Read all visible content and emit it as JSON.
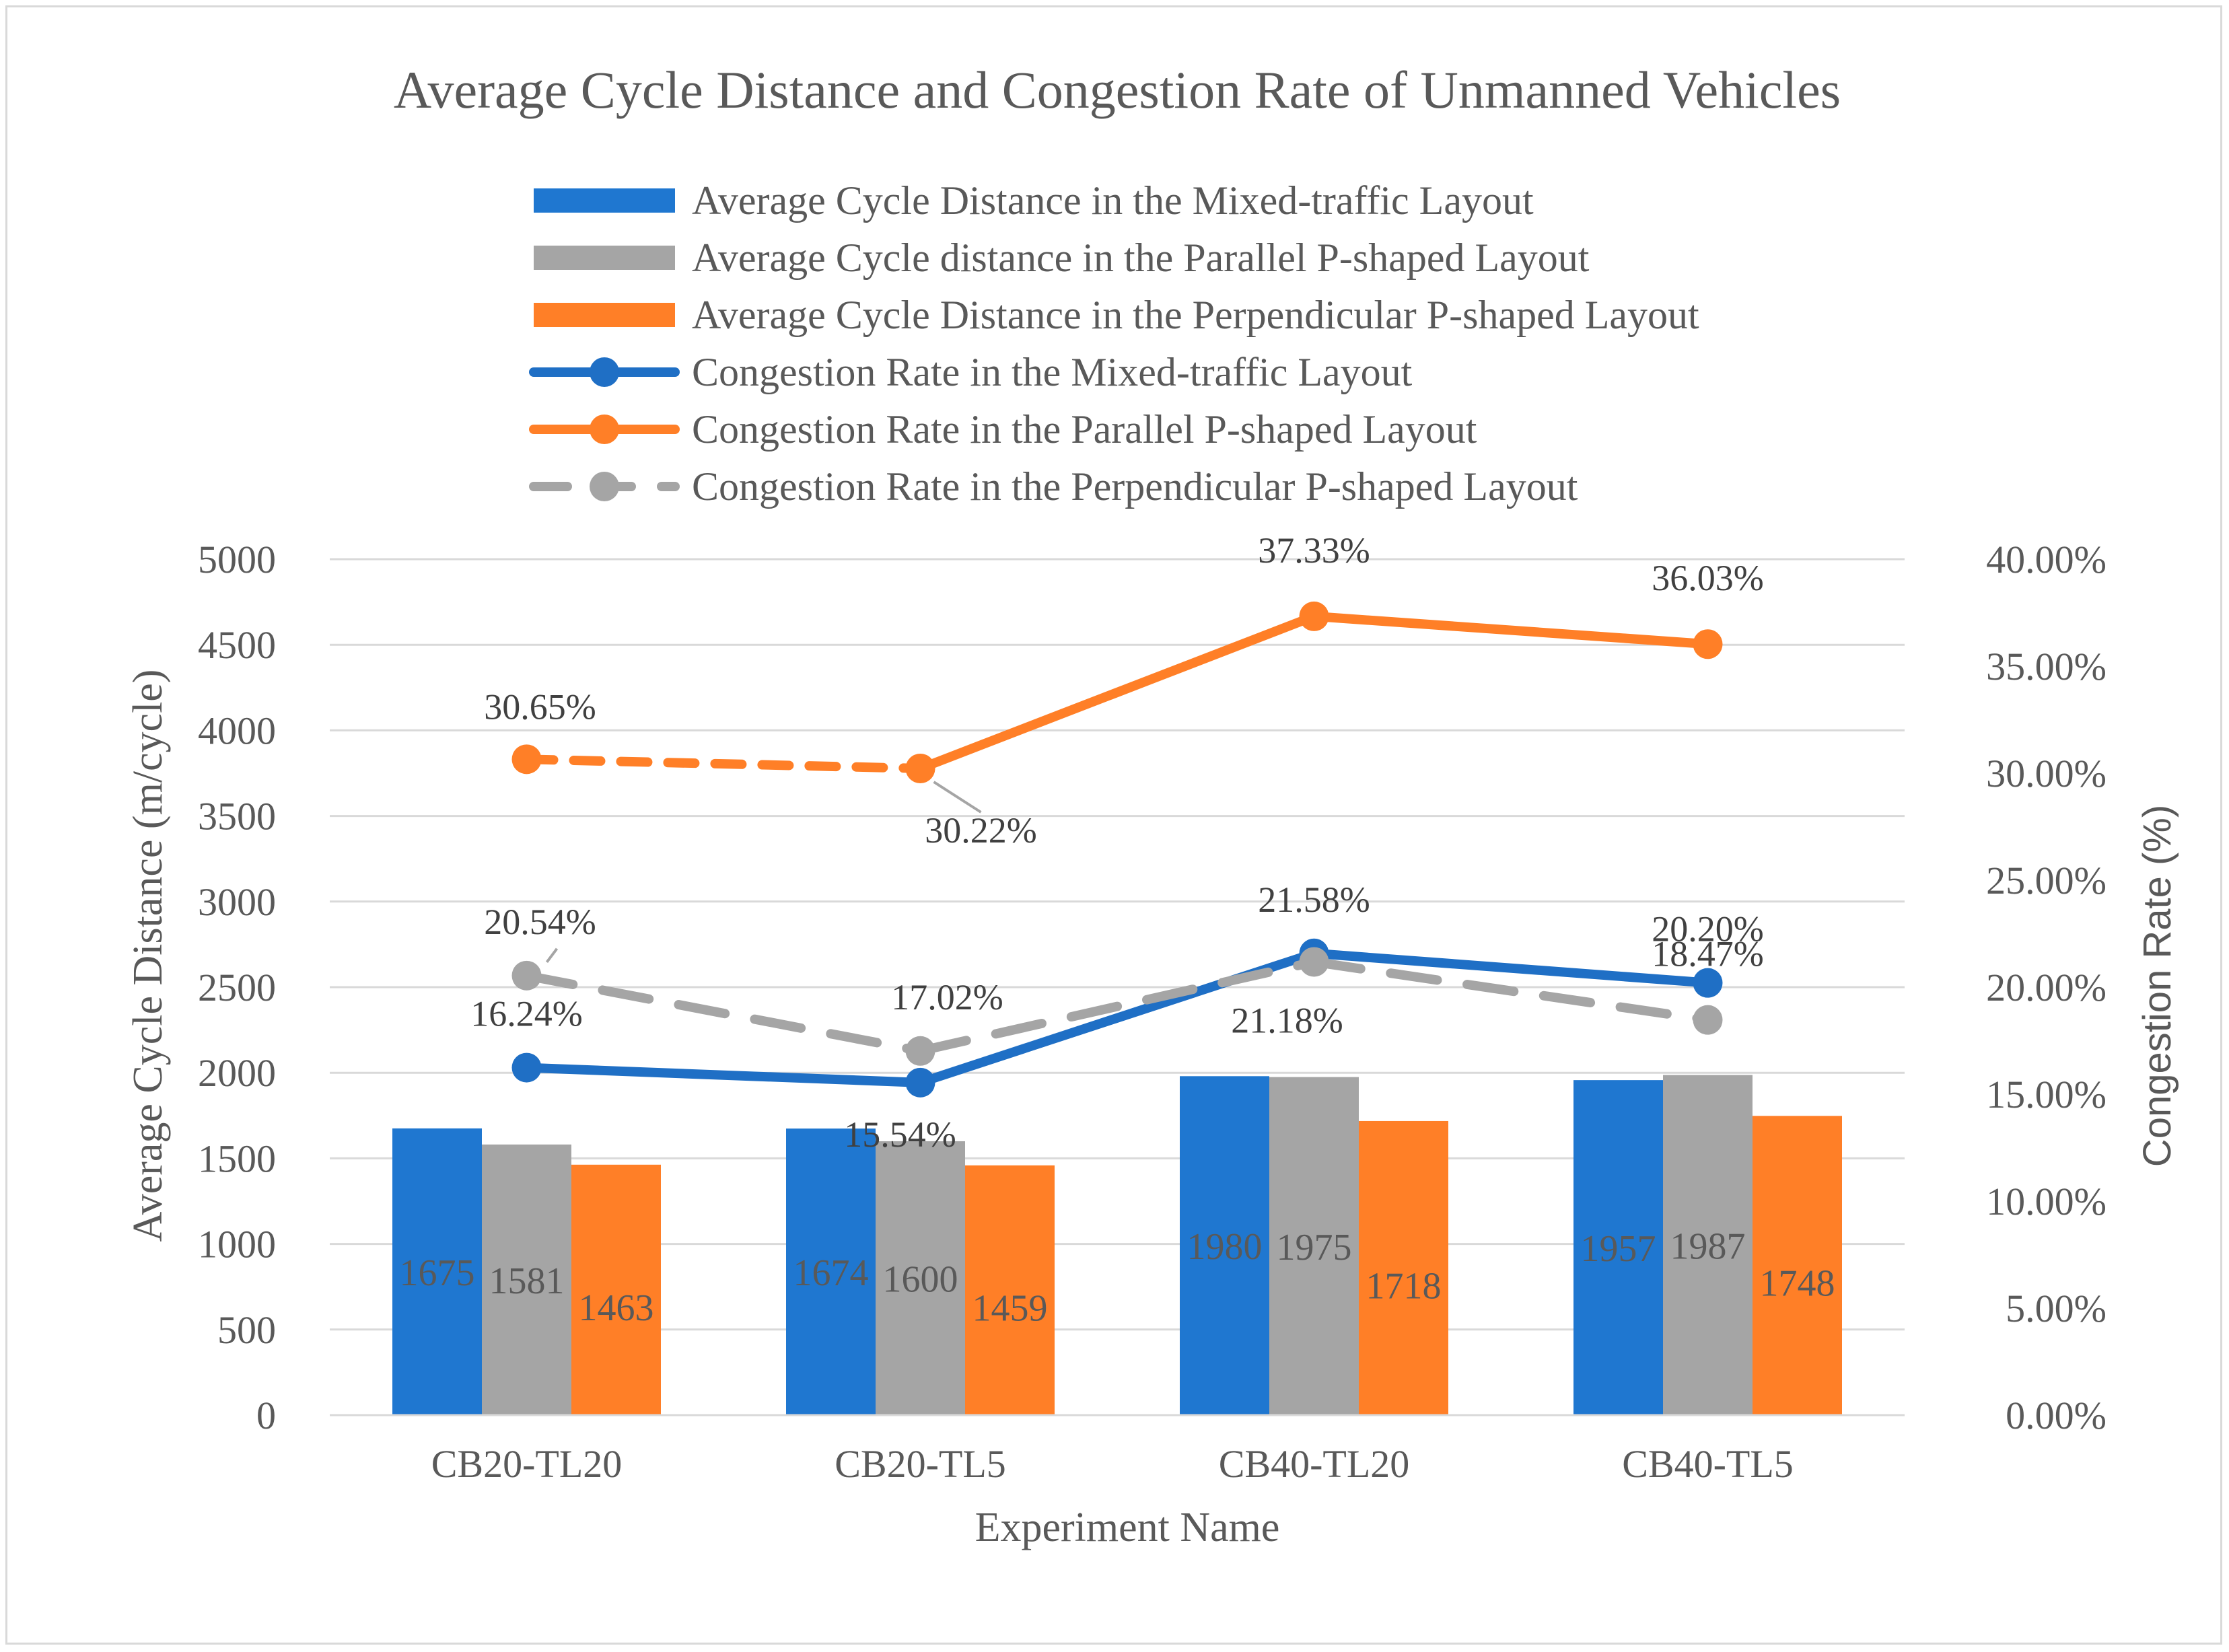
{
  "chart_data": {
    "type": "bar+line",
    "title": "Average Cycle Distance and Congestion Rate of Unmanned Vehicles",
    "xlabel": "Experiment Name",
    "ylabel": "Average Cycle Distance (m/cycle)",
    "y2label": "Congestion Rate (%)",
    "ylim": [
      0,
      5000
    ],
    "y2lim": [
      0,
      40
    ],
    "yticks": [
      "0",
      "500",
      "1000",
      "1500",
      "2000",
      "2500",
      "3000",
      "3500",
      "4000",
      "4500",
      "5000"
    ],
    "y2ticks": [
      "0.00%",
      "5.00%",
      "10.00%",
      "15.00%",
      "20.00%",
      "25.00%",
      "30.00%",
      "35.00%",
      "40.00%"
    ],
    "categories": [
      "CB20-TL20",
      "CB20-TL5",
      "CB40-TL20",
      "CB40-TL5"
    ],
    "bar_series": [
      {
        "name": "Average Cycle Distance in the Mixed-traffic Layout",
        "color": "#1f77d0",
        "values": [
          1675,
          1674,
          1980,
          1957
        ],
        "labels": [
          "1675",
          "1674",
          "1980",
          "1957"
        ]
      },
      {
        "name": "Average Cycle distance in the Parallel P-shaped Layout",
        "color": "#a5a5a5",
        "values": [
          1581,
          1600,
          1975,
          1987
        ],
        "labels": [
          "1581",
          "1600",
          "1975",
          "1987"
        ]
      },
      {
        "name": "Average Cycle Distance in the Perpendicular P-shaped Layout",
        "color": "#ff7f27",
        "values": [
          1463,
          1459,
          1718,
          1748
        ],
        "labels": [
          "1463",
          "1459",
          "1718",
          "1748"
        ]
      }
    ],
    "line_series": [
      {
        "name": "Congestion Rate in the Mixed-traffic Layout",
        "color": "#1f6fc5",
        "dashed": false,
        "values": [
          16.24,
          15.54,
          21.58,
          20.2
        ],
        "labels": [
          "16.24%",
          "15.54%",
          "21.58%",
          "20.20%"
        ]
      },
      {
        "name": "Congestion Rate in the Parallel P-shaped Layout",
        "color": "#ff7f27",
        "dashed": false,
        "first_segment_dashed": true,
        "values": [
          30.65,
          30.22,
          37.33,
          36.03
        ],
        "labels": [
          "30.65%",
          "30.22%",
          "37.33%",
          "36.03%"
        ]
      },
      {
        "name": "Congestion Rate in the Perpendicular P-shaped Layout",
        "color": "#a5a5a5",
        "dashed": true,
        "values": [
          20.54,
          17.02,
          21.18,
          18.47
        ],
        "labels": [
          "20.54%",
          "17.02%",
          "21.18%",
          "18.47%"
        ]
      }
    ],
    "legend_position": "top",
    "grid": true
  }
}
